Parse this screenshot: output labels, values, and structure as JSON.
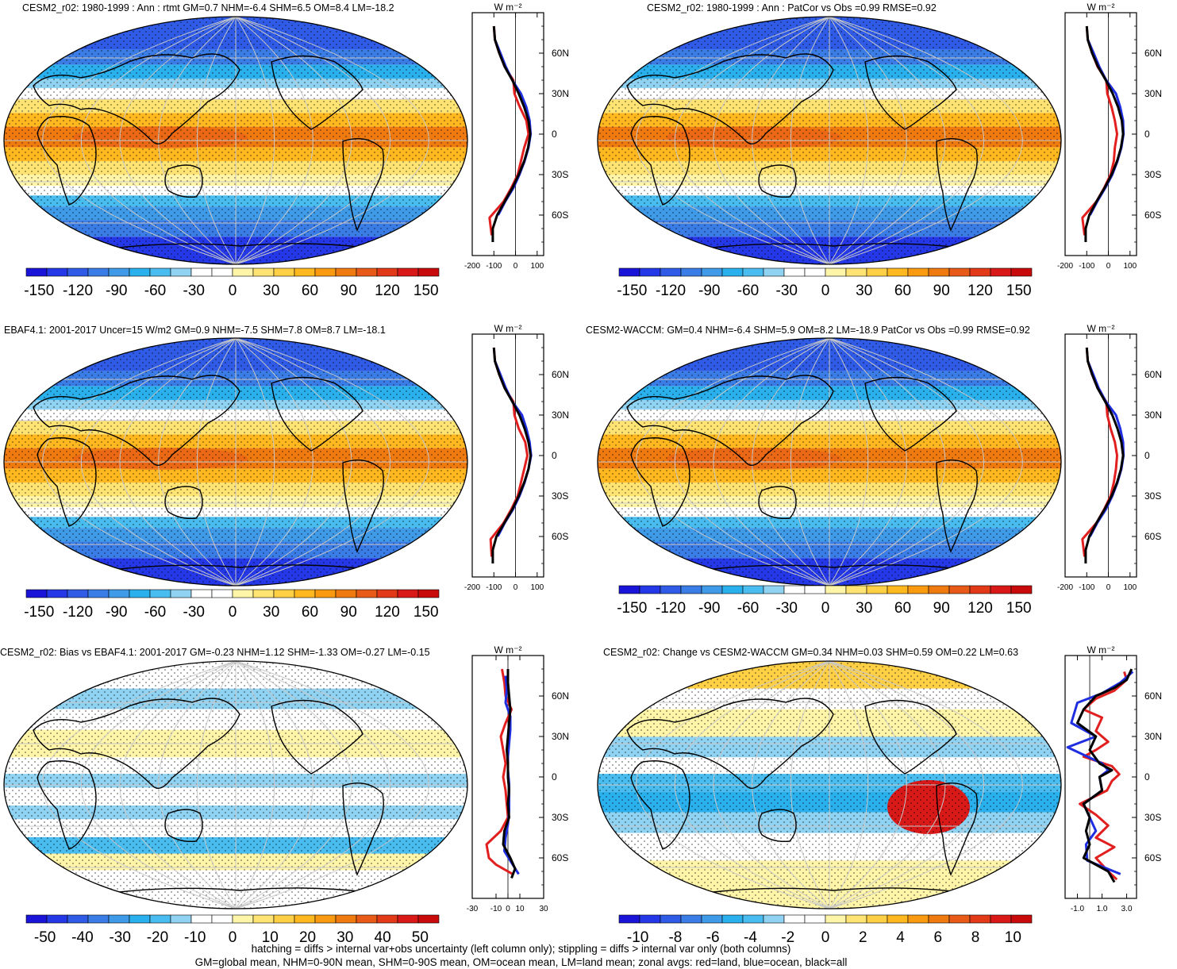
{
  "colors": {
    "land": "#e21f1f",
    "ocean": "#1f2ee0",
    "all": "#000000"
  },
  "palette": [
    "#1a14d8",
    "#2438e8",
    "#2f5be6",
    "#3b7de6",
    "#3f9ae8",
    "#2ab0ec",
    "#49bdf0",
    "#8fd2f2",
    "#ffffff",
    "#ffffff",
    "#fff5a8",
    "#ffe474",
    "#ffd045",
    "#ffb820",
    "#f99a10",
    "#ef7a10",
    "#e85a18",
    "#e23a18",
    "#d91818",
    "#c80a0a"
  ],
  "units_label": "W m⁻²",
  "chart_data": [
    {
      "type": "heatmap",
      "title": "CESM2_r02: 1980-1999 : Ann : rtmt GM=0.7 NHM=-6.4 SHM=6.5 OM=8.4 LM=-18.2",
      "colorbar_ticks": [
        "-150",
        "-120",
        "-90",
        "-60",
        "-30",
        "0",
        "30",
        "60",
        "90",
        "120",
        "150"
      ],
      "colorbar_range": [
        -160,
        160
      ],
      "zonal_lat_ticks": [
        "60N",
        "30N",
        "0",
        "30S",
        "60S"
      ],
      "zonal_x_ticks": [
        "-200",
        "-100",
        "0",
        "100"
      ],
      "zonal_xlim": [
        -200,
        130
      ],
      "zonal_profile_all": [
        [
          -100,
          80
        ],
        [
          -95,
          70
        ],
        [
          -75,
          60
        ],
        [
          -50,
          50
        ],
        [
          -15,
          40
        ],
        [
          15,
          30
        ],
        [
          40,
          20
        ],
        [
          60,
          10
        ],
        [
          68,
          0
        ],
        [
          58,
          -10
        ],
        [
          40,
          -20
        ],
        [
          15,
          -30
        ],
        [
          -15,
          -40
        ],
        [
          -50,
          -50
        ],
        [
          -85,
          -60
        ],
        [
          -105,
          -70
        ],
        [
          -105,
          -80
        ]
      ],
      "zonal_profile_land": [
        [
          -100,
          80
        ],
        [
          -95,
          70
        ],
        [
          -75,
          60
        ],
        [
          -50,
          50
        ],
        [
          -10,
          40
        ],
        [
          -5,
          30
        ],
        [
          20,
          20
        ],
        [
          50,
          10
        ],
        [
          60,
          0
        ],
        [
          40,
          -10
        ],
        [
          25,
          -20
        ],
        [
          10,
          -30
        ],
        [
          -20,
          -40
        ],
        [
          -55,
          -50
        ],
        [
          -120,
          -62
        ],
        [
          -110,
          -75
        ]
      ],
      "zonal_profile_ocean": [
        [
          -95,
          70
        ],
        [
          -70,
          60
        ],
        [
          -45,
          50
        ],
        [
          -15,
          40
        ],
        [
          25,
          30
        ],
        [
          50,
          20
        ],
        [
          65,
          10
        ],
        [
          70,
          0
        ],
        [
          60,
          -10
        ],
        [
          42,
          -20
        ],
        [
          18,
          -30
        ],
        [
          -10,
          -40
        ],
        [
          -48,
          -50
        ],
        [
          -80,
          -60
        ]
      ]
    },
    {
      "type": "heatmap",
      "title": "CESM2_r02: 1980-1999 : Ann : PatCor vs Obs =0.99 RMSE=0.92",
      "colorbar_ticks": [
        "-150",
        "-120",
        "-90",
        "-60",
        "-30",
        "0",
        "30",
        "60",
        "90",
        "120",
        "150"
      ],
      "colorbar_range": [
        -160,
        160
      ],
      "zonal_lat_ticks": [
        "60N",
        "30N",
        "0",
        "30S",
        "60S"
      ],
      "zonal_x_ticks": [
        "-200",
        "-100",
        "0",
        "100"
      ],
      "zonal_xlim": [
        -200,
        130
      ],
      "zonal_profile_all": [
        [
          -100,
          80
        ],
        [
          -95,
          70
        ],
        [
          -75,
          60
        ],
        [
          -48,
          50
        ],
        [
          -12,
          40
        ],
        [
          20,
          30
        ],
        [
          45,
          20
        ],
        [
          62,
          10
        ],
        [
          68,
          0
        ],
        [
          58,
          -10
        ],
        [
          40,
          -20
        ],
        [
          15,
          -30
        ],
        [
          -18,
          -40
        ],
        [
          -55,
          -50
        ],
        [
          -88,
          -60
        ],
        [
          -105,
          -70
        ],
        [
          -105,
          -80
        ]
      ],
      "zonal_profile_land": [
        [
          -100,
          80
        ],
        [
          -95,
          70
        ],
        [
          -75,
          60
        ],
        [
          -50,
          50
        ],
        [
          -10,
          40
        ],
        [
          -5,
          30
        ],
        [
          15,
          20
        ],
        [
          30,
          10
        ],
        [
          40,
          0
        ],
        [
          30,
          -10
        ],
        [
          25,
          -20
        ],
        [
          10,
          -30
        ],
        [
          -20,
          -40
        ],
        [
          -55,
          -50
        ],
        [
          -120,
          -62
        ],
        [
          -110,
          -75
        ]
      ],
      "zonal_profile_ocean": [
        [
          -95,
          70
        ],
        [
          -68,
          60
        ],
        [
          -42,
          50
        ],
        [
          -10,
          40
        ],
        [
          35,
          30
        ],
        [
          55,
          20
        ],
        [
          68,
          10
        ],
        [
          70,
          0
        ],
        [
          60,
          -10
        ],
        [
          42,
          -20
        ],
        [
          18,
          -30
        ],
        [
          -15,
          -40
        ],
        [
          -52,
          -50
        ],
        [
          -85,
          -60
        ]
      ]
    },
    {
      "type": "heatmap",
      "title": "EBAF4.1: 2001-2017 Uncer=15 W/m2 GM=0.9 NHM=-7.5 SHM=7.8 OM=8.7 LM=-18.1",
      "colorbar_ticks": [
        "-150",
        "-120",
        "-90",
        "-60",
        "-30",
        "0",
        "30",
        "60",
        "90",
        "120",
        "150"
      ],
      "colorbar_range": [
        -160,
        160
      ],
      "zonal_lat_ticks": [
        "60N",
        "30N",
        "0",
        "30S",
        "60S"
      ],
      "zonal_x_ticks": [
        "-200",
        "-100",
        "0",
        "100"
      ],
      "zonal_xlim": [
        -200,
        130
      ],
      "zonal_profile_all": [
        [
          -100,
          80
        ],
        [
          -95,
          70
        ],
        [
          -75,
          60
        ],
        [
          -50,
          50
        ],
        [
          -15,
          40
        ],
        [
          18,
          30
        ],
        [
          42,
          20
        ],
        [
          60,
          10
        ],
        [
          70,
          0
        ],
        [
          60,
          -10
        ],
        [
          40,
          -20
        ],
        [
          15,
          -30
        ],
        [
          -15,
          -40
        ],
        [
          -52,
          -50
        ],
        [
          -88,
          -60
        ],
        [
          -105,
          -70
        ],
        [
          -105,
          -80
        ]
      ],
      "zonal_profile_land": [
        [
          -100,
          80
        ],
        [
          -95,
          70
        ],
        [
          -75,
          60
        ],
        [
          -50,
          50
        ],
        [
          -10,
          40
        ],
        [
          -5,
          30
        ],
        [
          15,
          20
        ],
        [
          45,
          10
        ],
        [
          55,
          0
        ],
        [
          40,
          -10
        ],
        [
          25,
          -20
        ],
        [
          10,
          -30
        ],
        [
          -20,
          -40
        ],
        [
          -55,
          -50
        ],
        [
          -115,
          -62
        ],
        [
          -110,
          -75
        ]
      ],
      "zonal_profile_ocean": [
        [
          -95,
          70
        ],
        [
          -70,
          60
        ],
        [
          -45,
          50
        ],
        [
          -15,
          40
        ],
        [
          30,
          30
        ],
        [
          50,
          20
        ],
        [
          65,
          10
        ],
        [
          72,
          0
        ],
        [
          60,
          -10
        ],
        [
          42,
          -20
        ],
        [
          18,
          -30
        ],
        [
          -12,
          -40
        ],
        [
          -50,
          -50
        ],
        [
          -82,
          -60
        ]
      ]
    },
    {
      "type": "heatmap",
      "title": "CESM2-WACCM: GM=0.4 NHM=-6.4 SHM=5.9 OM=8.2 LM=-18.9 PatCor vs Obs =0.99 RMSE=0.92",
      "colorbar_ticks": [
        "-150",
        "-120",
        "-90",
        "-60",
        "-30",
        "0",
        "30",
        "60",
        "90",
        "120",
        "150"
      ],
      "colorbar_range": [
        -160,
        160
      ],
      "zonal_lat_ticks": [
        "60N",
        "30N",
        "0",
        "30S",
        "60S"
      ],
      "zonal_x_ticks": [
        "-200",
        "-100",
        "0",
        "100"
      ],
      "zonal_xlim": [
        -200,
        130
      ],
      "zonal_profile_all": [
        [
          -100,
          80
        ],
        [
          -95,
          70
        ],
        [
          -75,
          60
        ],
        [
          -50,
          50
        ],
        [
          -15,
          40
        ],
        [
          18,
          30
        ],
        [
          42,
          20
        ],
        [
          60,
          10
        ],
        [
          68,
          0
        ],
        [
          58,
          -10
        ],
        [
          40,
          -20
        ],
        [
          15,
          -30
        ],
        [
          -18,
          -40
        ],
        [
          -55,
          -50
        ],
        [
          -88,
          -60
        ],
        [
          -105,
          -70
        ],
        [
          -105,
          -80
        ]
      ],
      "zonal_profile_land": [
        [
          -100,
          80
        ],
        [
          -95,
          70
        ],
        [
          -75,
          60
        ],
        [
          -50,
          50
        ],
        [
          -10,
          40
        ],
        [
          -5,
          30
        ],
        [
          10,
          20
        ],
        [
          30,
          10
        ],
        [
          40,
          0
        ],
        [
          35,
          -10
        ],
        [
          25,
          -20
        ],
        [
          10,
          -30
        ],
        [
          -20,
          -40
        ],
        [
          -55,
          -50
        ],
        [
          -120,
          -62
        ],
        [
          -110,
          -75
        ]
      ],
      "zonal_profile_ocean": [
        [
          -95,
          70
        ],
        [
          -70,
          60
        ],
        [
          -45,
          50
        ],
        [
          -12,
          40
        ],
        [
          35,
          30
        ],
        [
          55,
          20
        ],
        [
          68,
          10
        ],
        [
          70,
          0
        ],
        [
          60,
          -10
        ],
        [
          42,
          -20
        ],
        [
          18,
          -30
        ],
        [
          -12,
          -40
        ],
        [
          -52,
          -50
        ],
        [
          -85,
          -60
        ]
      ]
    },
    {
      "type": "heatmap",
      "title": "CESM2_r02: Bias vs EBAF4.1: 2001-2017 GM=-0.23 NHM=1.12 SHM=-1.33 OM=-0.27 LM=-0.15",
      "colorbar_ticks": [
        "-50",
        "-40",
        "-30",
        "-20",
        "-10",
        "0",
        "10",
        "20",
        "30",
        "40",
        "50"
      ],
      "colorbar_range": [
        -55,
        55
      ],
      "zonal_lat_ticks": [
        "60N",
        "30N",
        "0",
        "30S",
        "60S"
      ],
      "zonal_x_ticks": [
        "-30",
        "-10",
        "0",
        "10",
        "30"
      ],
      "zonal_xlim": [
        -30,
        30
      ],
      "zonal_profile_all": [
        [
          0,
          80
        ],
        [
          0,
          70
        ],
        [
          1,
          60
        ],
        [
          2,
          50
        ],
        [
          1,
          40
        ],
        [
          0,
          30
        ],
        [
          -1,
          20
        ],
        [
          0,
          10
        ],
        [
          0,
          0
        ],
        [
          1,
          -10
        ],
        [
          0,
          -20
        ],
        [
          1,
          -30
        ],
        [
          -3,
          -40
        ],
        [
          -4,
          -50
        ],
        [
          2,
          -60
        ],
        [
          6,
          -68
        ],
        [
          3,
          -75
        ]
      ],
      "zonal_profile_land": [
        [
          -5,
          80
        ],
        [
          -3,
          70
        ],
        [
          -2,
          60
        ],
        [
          3,
          50
        ],
        [
          -2,
          40
        ],
        [
          -6,
          30
        ],
        [
          -4,
          20
        ],
        [
          -2,
          10
        ],
        [
          -4,
          0
        ],
        [
          -2,
          -10
        ],
        [
          -1,
          -20
        ],
        [
          0,
          -30
        ],
        [
          -6,
          -40
        ],
        [
          -18,
          -50
        ],
        [
          -16,
          -60
        ],
        [
          -10,
          -65
        ],
        [
          4,
          -72
        ]
      ],
      "zonal_profile_ocean": [
        [
          -2,
          75
        ],
        [
          -1,
          65
        ],
        [
          -2,
          55
        ],
        [
          2,
          45
        ],
        [
          2,
          35
        ],
        [
          1,
          25
        ],
        [
          0,
          15
        ],
        [
          0,
          5
        ],
        [
          1,
          -5
        ],
        [
          1,
          -15
        ],
        [
          1,
          -25
        ],
        [
          0,
          -35
        ],
        [
          -2,
          -45
        ],
        [
          -3,
          -55
        ],
        [
          4,
          -65
        ],
        [
          9,
          -72
        ]
      ]
    },
    {
      "type": "heatmap",
      "title": "CESM2_r02: Change vs CESM2-WACCM GM=0.34 NHM=0.03 SHM=0.59 OM=0.22 LM=0.63",
      "colorbar_ticks": [
        "-10",
        "-8",
        "-6",
        "-4",
        "-2",
        "0",
        "2",
        "4",
        "6",
        "8",
        "10"
      ],
      "colorbar_range": [
        -11,
        11
      ],
      "zonal_lat_ticks": [
        "60N",
        "30N",
        "0",
        "30S",
        "60S"
      ],
      "zonal_x_ticks": [
        "-1.0",
        "1.0",
        "3.0"
      ],
      "zonal_xlim": [
        -2,
        3.8
      ],
      "zonal_profile_all": [
        [
          3.4,
          80
        ],
        [
          3.0,
          72
        ],
        [
          2.0,
          66
        ],
        [
          0.5,
          60
        ],
        [
          -0.5,
          50
        ],
        [
          -1.0,
          40
        ],
        [
          0.5,
          30
        ],
        [
          0.0,
          20
        ],
        [
          0.8,
          10
        ],
        [
          1.8,
          5
        ],
        [
          0.8,
          0
        ],
        [
          1.0,
          -10
        ],
        [
          -0.5,
          -20
        ],
        [
          0.0,
          -30
        ],
        [
          -0.3,
          -40
        ],
        [
          0.0,
          -50
        ],
        [
          -0.5,
          -60
        ],
        [
          1.5,
          -70
        ],
        [
          2.0,
          -78
        ]
      ],
      "zonal_profile_land": [
        [
          2.8,
          78
        ],
        [
          3.0,
          72
        ],
        [
          2.0,
          64
        ],
        [
          0.5,
          58
        ],
        [
          -0.5,
          50
        ],
        [
          1.0,
          44
        ],
        [
          0.5,
          34
        ],
        [
          1.5,
          26
        ],
        [
          0.5,
          20
        ],
        [
          -0.5,
          15
        ],
        [
          1.8,
          8
        ],
        [
          2.4,
          2
        ],
        [
          1.8,
          -3
        ],
        [
          1.4,
          -10
        ],
        [
          -0.8,
          -20
        ],
        [
          0.5,
          -28
        ],
        [
          1.5,
          -36
        ],
        [
          0.5,
          -45
        ],
        [
          2.0,
          -52
        ],
        [
          0.5,
          -60
        ],
        [
          1.5,
          -70
        ],
        [
          2.2,
          -76
        ]
      ],
      "zonal_profile_ocean": [
        [
          3.5,
          78
        ],
        [
          2.5,
          70
        ],
        [
          1.0,
          62
        ],
        [
          -1.0,
          55
        ],
        [
          -1.5,
          40
        ],
        [
          0.5,
          30
        ],
        [
          -1.8,
          22
        ],
        [
          1.0,
          10
        ],
        [
          1.5,
          5
        ],
        [
          0.8,
          0
        ],
        [
          1.0,
          -10
        ],
        [
          -0.5,
          -20
        ],
        [
          0.0,
          -30
        ],
        [
          0.5,
          -40
        ],
        [
          -0.3,
          -50
        ],
        [
          -0.2,
          -62
        ],
        [
          2.5,
          -72
        ]
      ]
    }
  ],
  "footer": {
    "line1": "hatching = diffs > internal var+obs uncertainty (left column only); stippling = diffs > internal var only (both columns)",
    "line2": "GM=global mean, NHM=0-90N mean, SHM=0-90S mean, OM=ocean mean, LM=land mean; zonal avgs: red=land, blue=ocean, black=all"
  }
}
